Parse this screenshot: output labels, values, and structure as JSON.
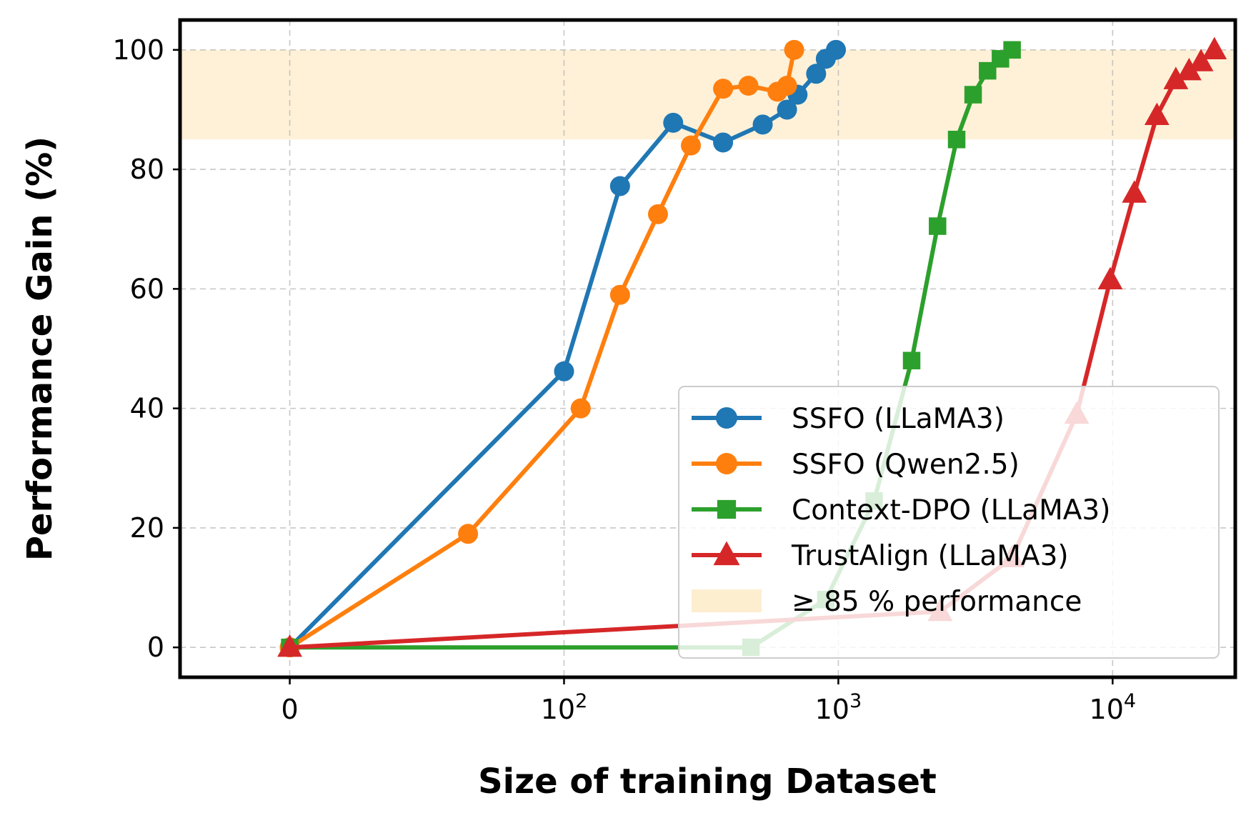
{
  "chart_data": {
    "type": "line",
    "title": "",
    "xlabel": "Size of training Dataset",
    "ylabel": "Performance Gain (%)",
    "xscale": "symlog",
    "xlim": [
      -40,
      28000
    ],
    "ylim": [
      -5,
      105
    ],
    "grid": true,
    "x_ticks": [
      {
        "value": 0,
        "base": "0",
        "exp": ""
      },
      {
        "value": 100,
        "base": "10",
        "exp": "2"
      },
      {
        "value": 1000,
        "base": "10",
        "exp": "3"
      },
      {
        "value": 10000,
        "base": "10",
        "exp": "4"
      }
    ],
    "y_ticks": [
      0,
      20,
      40,
      60,
      80,
      100
    ],
    "y_tick_labels": [
      "0",
      "20",
      "40",
      "60",
      "80",
      "100"
    ],
    "threshold_band": {
      "y_from": 85,
      "y_to": 100,
      "color": "#fdebc8",
      "label": "≥ 85 % performance"
    },
    "legend_position": "lower right",
    "series": [
      {
        "name": "SSFO (LLaMA3)",
        "color": "#1f77b4",
        "marker": "circle",
        "x": [
          0,
          100,
          160,
          250,
          380,
          530,
          650,
          710,
          830,
          900,
          980
        ],
        "y": [
          0,
          46.2,
          77.2,
          87.8,
          84.5,
          87.5,
          90,
          92.5,
          96,
          98.5,
          100
        ]
      },
      {
        "name": "SSFO (Qwen2.5)",
        "color": "#ff7f0e",
        "marker": "circle",
        "x": [
          0,
          65,
          115,
          160,
          220,
          290,
          380,
          470,
          600,
          650,
          690
        ],
        "y": [
          0,
          19,
          40,
          59,
          72.5,
          84,
          93.5,
          94,
          93,
          94,
          100
        ]
      },
      {
        "name": "Context-DPO (LLaMA3)",
        "color": "#2ca02c",
        "marker": "square",
        "x": [
          0,
          480,
          900,
          1350,
          1850,
          2300,
          2700,
          3100,
          3500,
          3900,
          4300
        ],
        "y": [
          0,
          0,
          8,
          24.5,
          48,
          70.5,
          85,
          92.5,
          96.5,
          98.5,
          100
        ]
      },
      {
        "name": "TrustAlign (LLaMA3)",
        "color": "#d62728",
        "marker": "triangle",
        "x": [
          0,
          2350,
          4300,
          7400,
          9800,
          12000,
          14500,
          17000,
          19000,
          21000,
          23500
        ],
        "y": [
          0,
          6,
          15,
          39,
          61.5,
          76,
          89,
          95,
          96.5,
          98,
          100
        ]
      }
    ]
  }
}
